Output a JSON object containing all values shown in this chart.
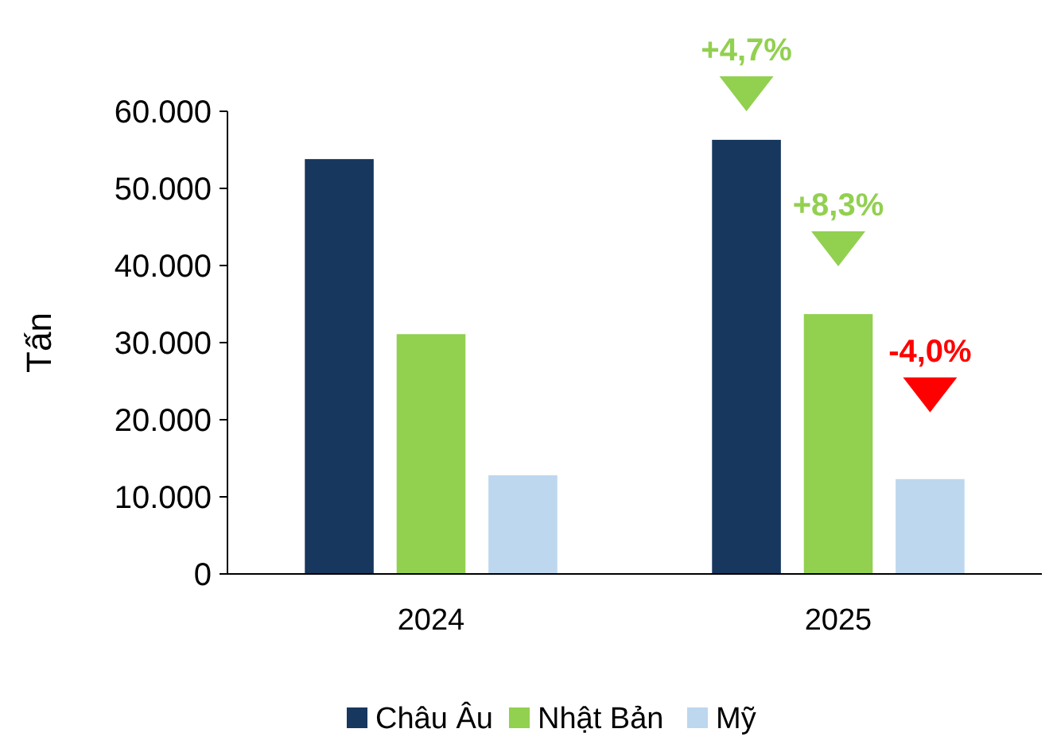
{
  "chart_data": {
    "type": "bar",
    "ylabel": "Tấn",
    "categories": [
      "2024",
      "2025"
    ],
    "series": [
      {
        "name": "Châu Âu",
        "color": "#17375e",
        "values": [
          53800,
          56300
        ]
      },
      {
        "name": "Nhật Bản",
        "color": "#92d050",
        "values": [
          31100,
          33700
        ]
      },
      {
        "name": "Mỹ",
        "color": "#bdd7ee",
        "values": [
          12800,
          12300
        ]
      }
    ],
    "ylim": [
      0,
      60000
    ],
    "yticks": [
      {
        "value": 0,
        "label": "0"
      },
      {
        "value": 10000,
        "label": "10.000"
      },
      {
        "value": 20000,
        "label": "20.000"
      },
      {
        "value": 30000,
        "label": "30.000"
      },
      {
        "value": 40000,
        "label": "40.000"
      },
      {
        "value": 50000,
        "label": "50.000"
      },
      {
        "value": 60000,
        "label": "60.000"
      }
    ],
    "annotations": [
      "+4,7%",
      "+8,3%",
      "-4,0%"
    ],
    "grid": false,
    "legend": "bottom"
  }
}
